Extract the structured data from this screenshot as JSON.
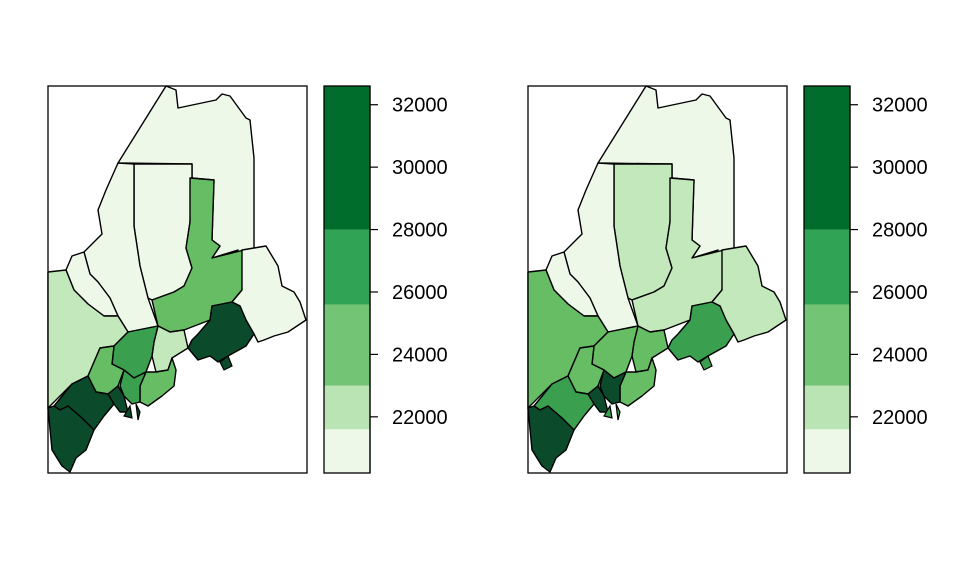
{
  "palette": [
    "#edf8e9",
    "#bae4b3",
    "#74c476",
    "#31a354",
    "#006d2c",
    "#0b4a2a"
  ],
  "fills": {
    "c1": "#edf8e9",
    "c2": "#c3e8bb",
    "c3": "#66bd63",
    "c4": "#3a9f4f",
    "c5": "#1e7a36",
    "c6": "#0b4a2a"
  },
  "legend": {
    "breaks": [
      20200,
      21600,
      23000,
      25600,
      28000,
      32600
    ],
    "range": [
      20200,
      32600
    ],
    "tick_values": [
      22000,
      24000,
      26000,
      28000,
      30000,
      32000
    ],
    "tick_labels": [
      "22000",
      "24000",
      "26000",
      "28000",
      "30000",
      "32000"
    ]
  },
  "maps": [
    {
      "name": "left-map",
      "counties": {
        "aroostook": "c1",
        "piscataquis": "c1",
        "somerset": "c1",
        "franklin": "c1",
        "oxford": "c2",
        "penobscot": "c3",
        "washington": "c1",
        "hancock": "c6",
        "waldo": "c2",
        "kennebec": "c4",
        "androscoggin": "c3",
        "cumberland": "c6",
        "york": "c6",
        "sagadahoc": "c6",
        "lincoln": "c4",
        "knox": "c3"
      }
    },
    {
      "name": "right-map",
      "counties": {
        "aroostook": "c1",
        "piscataquis": "c2",
        "somerset": "c1",
        "franklin": "c1",
        "oxford": "c3",
        "penobscot": "c2",
        "washington": "c2",
        "hancock": "c4",
        "waldo": "c3",
        "kennebec": "c3",
        "androscoggin": "c3",
        "cumberland": "c4",
        "york": "c6",
        "sagadahoc": "c6",
        "lincoln": "c6",
        "knox": "c3"
      }
    }
  ]
}
